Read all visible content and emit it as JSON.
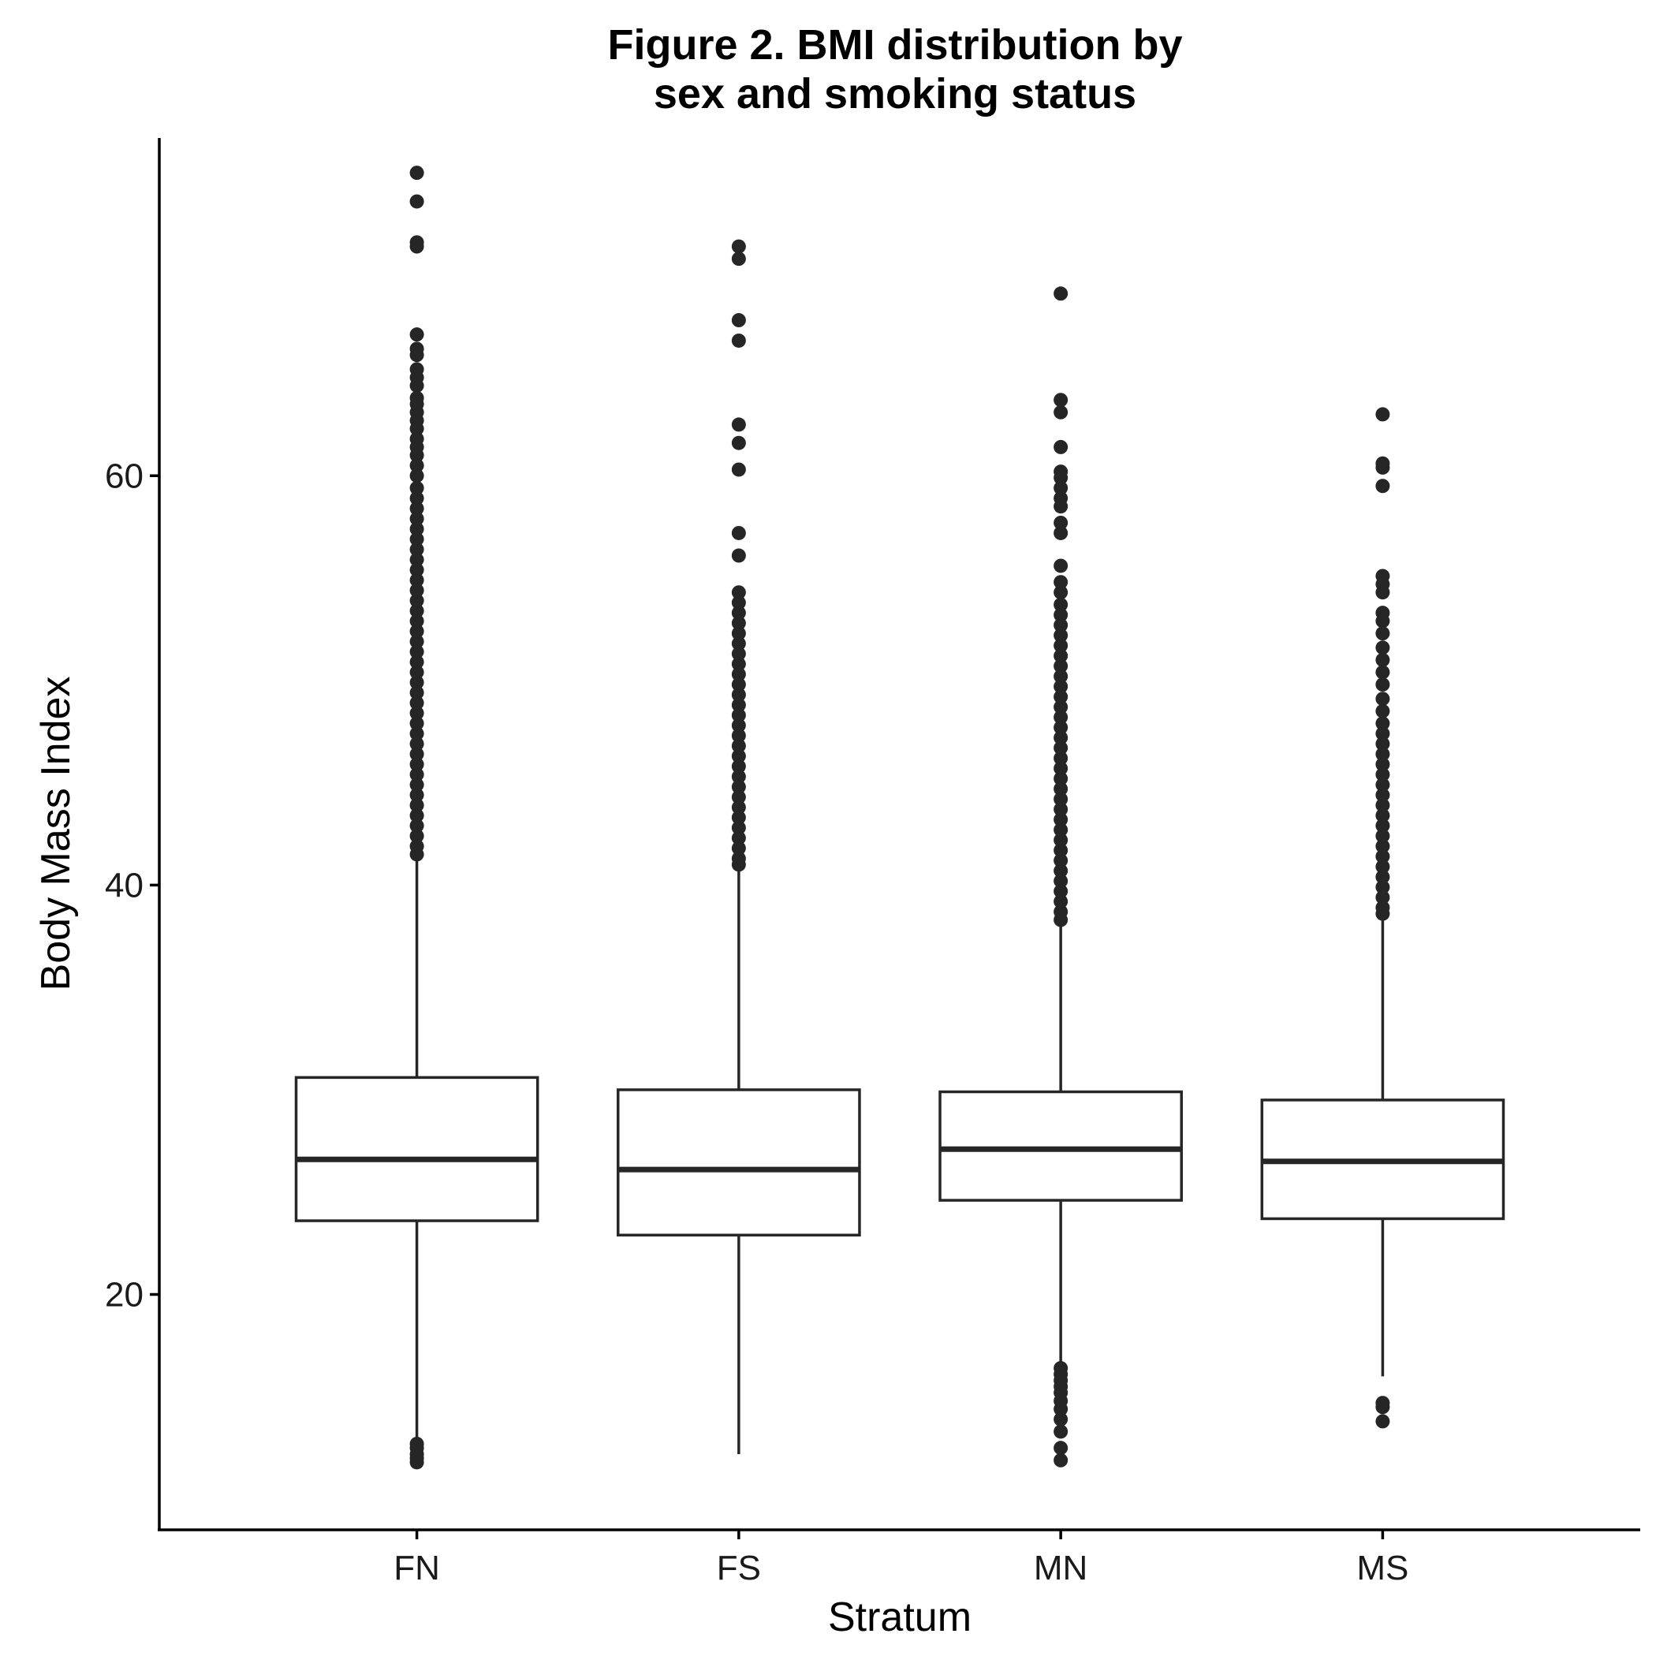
{
  "chart_data": {
    "type": "box",
    "title_lines": [
      "Figure 2. BMI distribution by",
      "sex and smoking status"
    ],
    "xlabel": "Stratum",
    "ylabel": "Body Mass Index",
    "ylim": [
      8.5,
      76.5
    ],
    "yticks": [
      20,
      40,
      60
    ],
    "grid": false,
    "legend": "none",
    "colors": {
      "box_stroke": "#262626",
      "box_fill": "#ffffff",
      "axis": "#000000"
    },
    "categories": [
      "FN",
      "FS",
      "MN",
      "MS"
    ],
    "boxes": [
      {
        "category": "FN",
        "q1": 23.6,
        "median": 26.6,
        "q3": 30.6,
        "whisker_low": 12.8,
        "whisker_high": 41.2,
        "outliers": [
          74.8,
          73.4,
          71.4,
          71.2,
          66.9,
          66.2,
          65.9,
          65.2,
          64.8,
          64.4,
          63.8,
          63.5,
          63.1,
          62.7,
          62.3,
          61.8,
          61.4,
          61.0,
          60.5,
          60.0,
          59.4,
          58.9,
          58.4,
          57.9,
          57.4,
          56.9,
          56.4,
          55.9,
          55.4,
          54.9,
          54.4,
          53.9,
          53.4,
          52.9,
          52.4,
          51.9,
          51.4,
          50.9,
          50.4,
          49.9,
          49.4,
          48.9,
          48.4,
          47.9,
          47.4,
          46.9,
          46.4,
          45.9,
          45.4,
          44.9,
          44.4,
          43.9,
          43.4,
          42.9,
          42.4,
          41.9,
          41.5,
          12.7,
          12.5,
          12.2,
          12.0,
          11.8
        ]
      },
      {
        "category": "FS",
        "q1": 22.9,
        "median": 26.1,
        "q3": 30.0,
        "whisker_low": 12.2,
        "whisker_high": 40.7,
        "outliers": [
          71.2,
          70.6,
          67.6,
          66.6,
          62.5,
          61.6,
          60.3,
          57.2,
          56.1,
          54.3,
          53.8,
          53.3,
          52.8,
          52.3,
          51.8,
          51.3,
          50.8,
          50.3,
          49.8,
          49.3,
          48.8,
          48.3,
          47.8,
          47.3,
          46.8,
          46.3,
          45.8,
          45.3,
          44.8,
          44.3,
          43.8,
          43.3,
          42.8,
          42.3,
          41.8,
          41.3,
          41.0
        ]
      },
      {
        "category": "MN",
        "q1": 24.6,
        "median": 27.1,
        "q3": 29.9,
        "whisker_low": 16.6,
        "whisker_high": 38.0,
        "outliers": [
          68.9,
          63.7,
          63.1,
          61.4,
          60.2,
          59.9,
          59.4,
          58.9,
          58.5,
          57.7,
          57.2,
          55.6,
          54.8,
          54.3,
          53.7,
          53.2,
          52.7,
          52.2,
          51.7,
          51.2,
          50.7,
          50.2,
          49.7,
          49.2,
          48.7,
          48.2,
          47.7,
          47.2,
          46.7,
          46.2,
          45.7,
          45.2,
          44.7,
          44.2,
          43.7,
          43.2,
          42.7,
          42.2,
          41.7,
          41.2,
          40.7,
          40.2,
          39.7,
          39.2,
          38.7,
          38.3,
          16.4,
          16.1,
          15.8,
          15.5,
          15.2,
          14.8,
          14.4,
          13.9,
          13.3,
          12.5,
          11.9
        ]
      },
      {
        "category": "MS",
        "q1": 23.7,
        "median": 26.5,
        "q3": 29.5,
        "whisker_low": 16.0,
        "whisker_high": 38.4,
        "outliers": [
          63.0,
          60.6,
          60.4,
          59.5,
          55.1,
          54.7,
          54.3,
          53.3,
          52.9,
          52.3,
          51.6,
          51.0,
          50.4,
          49.8,
          49.1,
          48.5,
          47.9,
          47.4,
          46.9,
          46.4,
          45.9,
          45.4,
          44.9,
          44.4,
          43.9,
          43.4,
          42.9,
          42.4,
          41.9,
          41.4,
          40.9,
          40.4,
          39.9,
          39.4,
          38.9,
          38.6,
          14.7,
          14.5,
          13.8
        ]
      }
    ]
  }
}
